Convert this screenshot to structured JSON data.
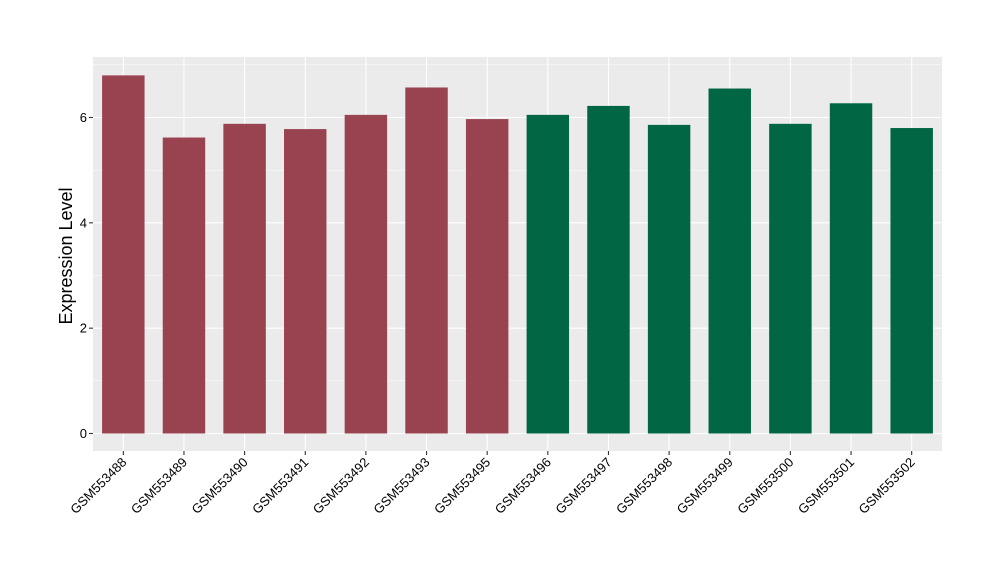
{
  "chart_data": {
    "type": "bar",
    "title": "",
    "xlabel": "",
    "ylabel": "Expression Level",
    "ylim": [
      0,
      7.1
    ],
    "yticks": [
      0,
      2,
      4,
      6
    ],
    "grid": true,
    "legend": "none",
    "categories": [
      "GSM553488",
      "GSM553489",
      "GSM553490",
      "GSM553491",
      "GSM553492",
      "GSM553493",
      "GSM553495",
      "GSM553496",
      "GSM553497",
      "GSM553498",
      "GSM553499",
      "GSM553500",
      "GSM553501",
      "GSM553502"
    ],
    "values": [
      6.8,
      5.62,
      5.88,
      5.78,
      6.05,
      6.57,
      5.97,
      6.05,
      6.22,
      5.86,
      6.55,
      5.88,
      6.27,
      5.8
    ],
    "group": [
      0,
      0,
      0,
      0,
      0,
      0,
      0,
      1,
      1,
      1,
      1,
      1,
      1,
      1
    ],
    "group_colors": [
      "#9A4350",
      "#006644"
    ],
    "panel_color": "#EBEBEB",
    "grid_color": "#FFFFFF"
  }
}
